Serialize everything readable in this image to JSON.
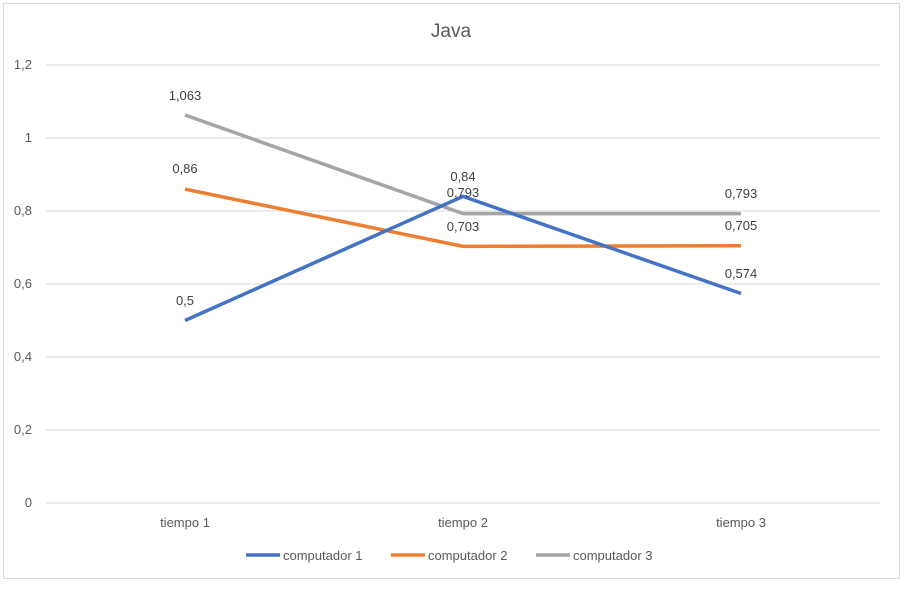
{
  "chart_data": {
    "type": "line",
    "title": "Java",
    "xlabel": "",
    "ylabel": "",
    "categories": [
      "tiempo 1",
      "tiempo 2",
      "tiempo 3"
    ],
    "ylim": [
      0,
      1.2
    ],
    "yticks": [
      0,
      0.2,
      0.4,
      0.6,
      0.8,
      1,
      1.2
    ],
    "ytick_labels": [
      "0",
      "0,2",
      "0,4",
      "0,6",
      "0,8",
      "1",
      "1,2"
    ],
    "grid": true,
    "legend_position": "bottom",
    "series": [
      {
        "name": "computador 1",
        "color": "#4472c4",
        "values": [
          0.5,
          0.84,
          0.574
        ],
        "labels": [
          "0,5",
          "0,84",
          "0,574"
        ]
      },
      {
        "name": "computador 2",
        "color": "#ed7d31",
        "values": [
          0.86,
          0.703,
          0.705
        ],
        "labels": [
          "0,86",
          "0,703",
          "0,705"
        ]
      },
      {
        "name": "computador 3",
        "color": "#a5a5a5",
        "values": [
          1.063,
          0.793,
          0.793
        ],
        "labels": [
          "1,063",
          "0,793",
          "0,793"
        ]
      }
    ]
  }
}
